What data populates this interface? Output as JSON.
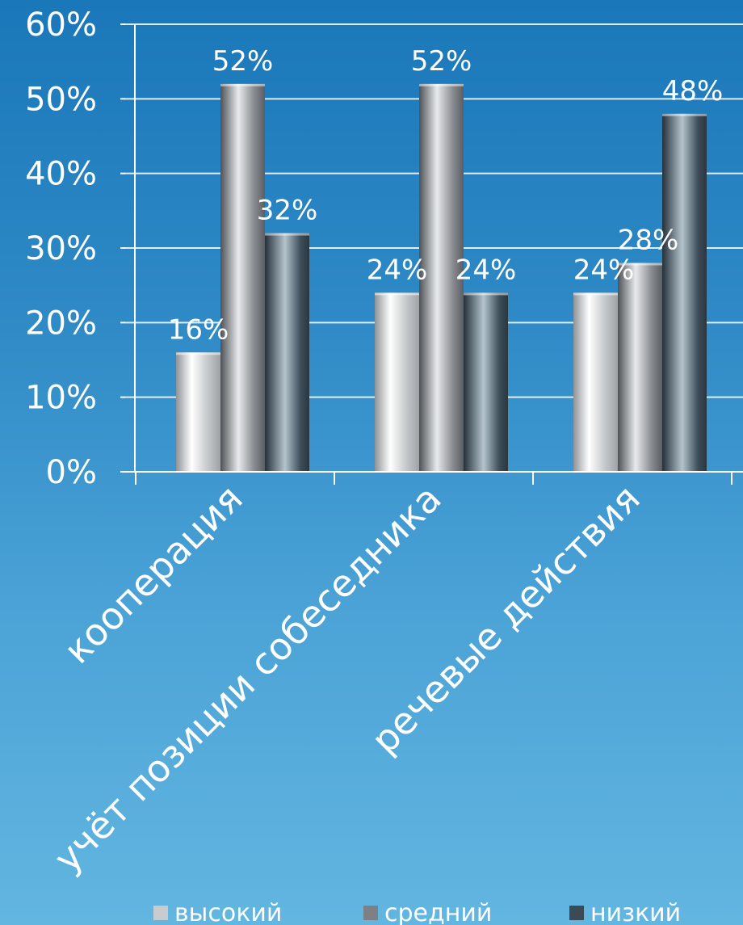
{
  "chart_data": {
    "type": "bar",
    "categories": [
      "кооперация",
      "учёт позиции собеседника",
      "речевые действия"
    ],
    "series": [
      {
        "name": "высокий",
        "values": [
          16,
          24,
          24
        ],
        "color": "#c9ccce"
      },
      {
        "name": "средний",
        "values": [
          52,
          52,
          28
        ],
        "color": "#7d8084"
      },
      {
        "name": "низкий",
        "values": [
          32,
          24,
          48
        ],
        "color": "#3b4a56"
      }
    ],
    "data_labels": [
      [
        "16%",
        "24%",
        "24%"
      ],
      [
        "52%",
        "52%",
        "28%"
      ],
      [
        "32%",
        "24%",
        "48%"
      ]
    ],
    "y_ticks": [
      "0%",
      "10%",
      "20%",
      "30%",
      "40%",
      "50%",
      "60%"
    ],
    "ylim": [
      0,
      60
    ],
    "grid": true,
    "legend": "bottom"
  }
}
